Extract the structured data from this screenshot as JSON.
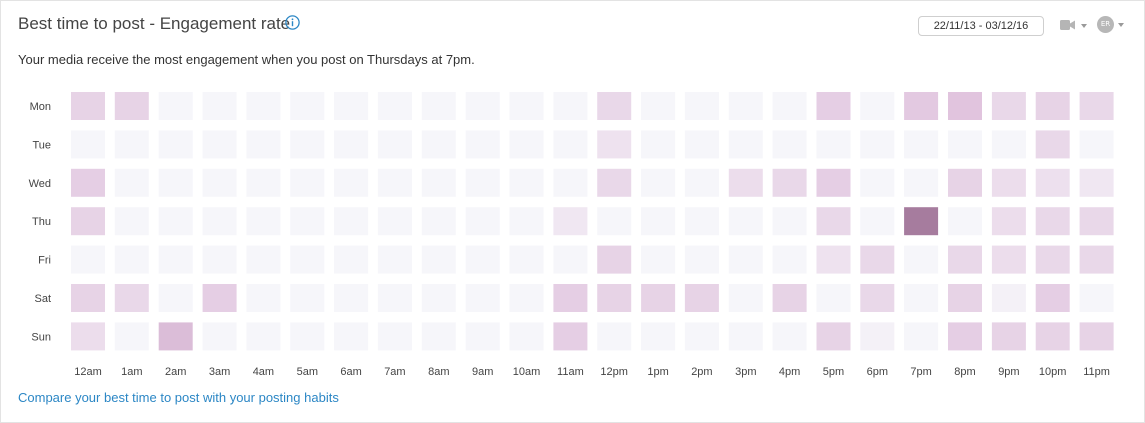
{
  "header": {
    "title": "Best time to post - Engagement rate",
    "info_icon": "info-circle-icon",
    "date_range": "22/11/13 - 03/12/16",
    "camera_icon": "video-camera-icon",
    "avatar_initials": "ER"
  },
  "subtitle": "Your media receive the most engagement when you post on Thursdays at 7pm.",
  "footer_link": "Compare your best time to post with your posting habits",
  "colors": {
    "accent_link": "#2c87c5",
    "cell_base": "#f6f6fa",
    "cell_peak": "#a67c9e"
  },
  "chart_data": {
    "type": "heatmap",
    "title": "",
    "xlabel": "",
    "ylabel": "",
    "rows": [
      "Mon",
      "Tue",
      "Wed",
      "Thu",
      "Fri",
      "Sat",
      "Sun"
    ],
    "columns": [
      "12am",
      "1am",
      "2am",
      "3am",
      "4am",
      "5am",
      "6am",
      "7am",
      "8am",
      "9am",
      "10am",
      "11am",
      "12pm",
      "1pm",
      "2pm",
      "3pm",
      "4pm",
      "5pm",
      "6pm",
      "7pm",
      "8pm",
      "9pm",
      "10pm",
      "11pm"
    ],
    "values": [
      [
        0.35,
        0.35,
        0.0,
        0.0,
        0.0,
        0.0,
        0.0,
        0.0,
        0.0,
        0.0,
        0.0,
        0.0,
        0.3,
        0.0,
        0.0,
        0.0,
        0.0,
        0.4,
        0.0,
        0.45,
        0.5,
        0.3,
        0.35,
        0.3
      ],
      [
        0.0,
        0.0,
        0.0,
        0.0,
        0.0,
        0.0,
        0.0,
        0.0,
        0.0,
        0.0,
        0.0,
        0.0,
        0.2,
        0.0,
        0.0,
        0.0,
        0.0,
        0.0,
        0.0,
        0.0,
        0.0,
        0.0,
        0.3,
        0.0
      ],
      [
        0.4,
        0.0,
        0.0,
        0.0,
        0.0,
        0.0,
        0.0,
        0.0,
        0.0,
        0.0,
        0.0,
        0.0,
        0.3,
        0.0,
        0.0,
        0.25,
        0.3,
        0.4,
        0.0,
        0.0,
        0.35,
        0.25,
        0.22,
        0.15
      ],
      [
        0.35,
        0.0,
        0.0,
        0.0,
        0.0,
        0.0,
        0.0,
        0.0,
        0.0,
        0.0,
        0.0,
        0.15,
        0.0,
        0.0,
        0.0,
        0.0,
        0.0,
        0.3,
        0.0,
        1.0,
        0.0,
        0.25,
        0.3,
        0.3
      ],
      [
        0.0,
        0.0,
        0.0,
        0.0,
        0.0,
        0.0,
        0.0,
        0.0,
        0.0,
        0.0,
        0.0,
        0.0,
        0.35,
        0.0,
        0.0,
        0.0,
        0.0,
        0.2,
        0.3,
        0.0,
        0.3,
        0.25,
        0.3,
        0.3
      ],
      [
        0.35,
        0.3,
        0.0,
        0.4,
        0.0,
        0.0,
        0.0,
        0.0,
        0.0,
        0.0,
        0.0,
        0.4,
        0.35,
        0.35,
        0.35,
        0.0,
        0.35,
        0.0,
        0.3,
        0.0,
        0.35,
        0.05,
        0.4,
        0.0
      ],
      [
        0.25,
        0.0,
        0.55,
        0.0,
        0.0,
        0.0,
        0.0,
        0.0,
        0.0,
        0.0,
        0.0,
        0.4,
        0.0,
        0.0,
        0.0,
        0.0,
        0.0,
        0.35,
        0.05,
        0.0,
        0.4,
        0.35,
        0.35,
        0.35
      ]
    ],
    "grid": false,
    "legend": "none"
  }
}
